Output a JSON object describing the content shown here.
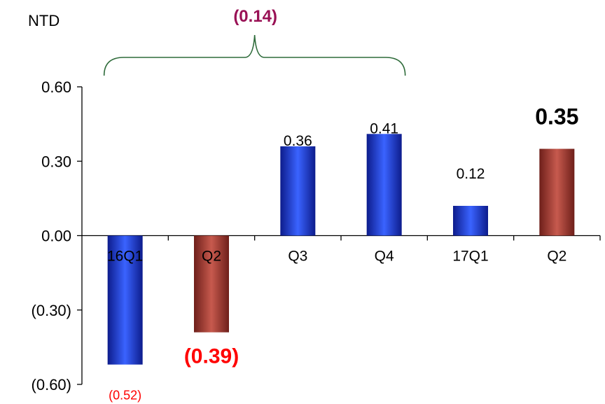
{
  "chart_data": {
    "type": "bar",
    "y_unit_label": "NTD",
    "categories": [
      "16Q1",
      "Q2",
      "Q3",
      "Q4",
      "17Q1",
      "Q2"
    ],
    "values": [
      -0.52,
      -0.39,
      0.36,
      0.41,
      0.12,
      0.35
    ],
    "data_labels": [
      "(0.52)",
      "(0.39)",
      "0.36",
      "0.41",
      "0.12",
      "0.35"
    ],
    "yticks": [
      "0.60",
      "0.30",
      "0.00",
      "(0.30)",
      "(0.60)"
    ],
    "ytick_values": [
      0.6,
      0.3,
      0.0,
      -0.3,
      -0.6
    ],
    "ylim": [
      -0.6,
      0.6
    ],
    "grid": false,
    "bracket_label": "(0.14)",
    "bracket_covers": [
      "16Q1",
      "Q2",
      "Q3",
      "Q4"
    ],
    "highlighted": [
      1,
      5
    ]
  },
  "colors": {
    "bar_blue": "#1f3fd8",
    "bar_red": "#a33a32",
    "negative_label": "#ff0000",
    "bracket": "#2e6b3a",
    "bracket_label": "#991155",
    "axis": "#000000"
  }
}
